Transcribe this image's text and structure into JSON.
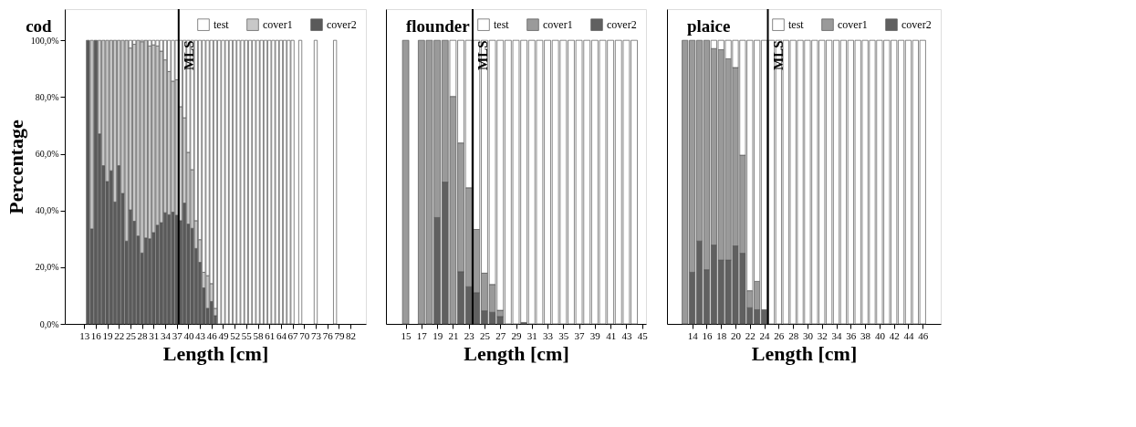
{
  "chart_data": [
    {
      "type": "bar",
      "stacked": true,
      "title": "cod",
      "xlabel": "Length [cm]",
      "ylabel": "Percentage",
      "x": [
        14,
        15,
        16,
        17,
        18,
        19,
        20,
        21,
        22,
        23,
        24,
        25,
        26,
        27,
        28,
        29,
        30,
        31,
        32,
        33,
        34,
        35,
        36,
        37,
        38,
        39,
        40,
        41,
        42,
        43,
        44,
        45,
        46,
        47,
        48,
        49,
        50,
        51,
        52,
        53,
        54,
        55,
        56,
        57,
        58,
        59,
        60,
        61,
        62,
        63,
        64,
        65,
        66,
        67,
        69,
        73,
        78
      ],
      "series": [
        {
          "name": "cover2",
          "color": "#5a5a5a",
          "values": [
            100,
            33.5,
            100,
            67,
            55.8,
            50.2,
            54,
            43,
            55.8,
            46,
            29.2,
            40.2,
            36.2,
            31,
            25,
            30.3,
            30,
            32.2,
            34.8,
            35.7,
            39.2,
            38.5,
            39.4,
            38.3,
            36.4,
            42.6,
            35.2,
            33.7,
            26.6,
            21.7,
            12.7,
            5.5,
            7.9,
            2.9,
            null,
            null,
            null,
            null,
            null,
            null,
            null,
            null,
            null,
            null,
            null,
            null,
            null,
            null,
            null,
            null,
            null,
            null,
            null,
            null,
            null,
            null,
            null
          ]
        },
        {
          "name": "cover1",
          "color": "#c8c8c8",
          "values": [
            null,
            66.5,
            null,
            33,
            44.2,
            49.8,
            46,
            57,
            44.2,
            54,
            70.8,
            57.1,
            62.4,
            69,
            74.5,
            69.7,
            68,
            66.2,
            63.2,
            60.5,
            53.9,
            50.5,
            46.2,
            47.8,
            40.2,
            30.1,
            25.3,
            20.7,
            9.8,
            8,
            5.5,
            11.5,
            6.3,
            2.6,
            null,
            null,
            null,
            null,
            null,
            null,
            null,
            null,
            null,
            null,
            null,
            null,
            null,
            null,
            null,
            null,
            null,
            null,
            null,
            null,
            null,
            null,
            null
          ]
        },
        {
          "name": "test",
          "color": "#ffffff",
          "values": [
            null,
            null,
            null,
            null,
            null,
            null,
            null,
            null,
            null,
            null,
            null,
            2.7,
            1.4,
            null,
            0.5,
            null,
            2,
            1.6,
            2,
            3.8,
            6.9,
            11,
            14.4,
            13.9,
            23.4,
            27.3,
            39.5,
            45.6,
            63.6,
            70.3,
            81.8,
            83,
            85.8,
            94.5,
            100,
            100,
            100,
            100,
            100,
            100,
            100,
            100,
            100,
            100,
            100,
            100,
            100,
            100,
            100,
            100,
            100,
            100,
            100,
            100,
            100,
            100,
            100
          ]
        }
      ],
      "xlim": [
        8,
        86
      ],
      "xticks": [
        13,
        16,
        19,
        22,
        25,
        28,
        31,
        34,
        37,
        40,
        43,
        46,
        49,
        52,
        55,
        58,
        61,
        64,
        67,
        70,
        73,
        76,
        79,
        82
      ],
      "ylim": [
        0,
        111
      ],
      "yticks": [
        {
          "value": 0,
          "label": "0,0%"
        },
        {
          "value": 20,
          "label": "20,0%"
        },
        {
          "value": 40,
          "label": "40,0%"
        },
        {
          "value": 60,
          "label": "60,0%"
        },
        {
          "value": 80,
          "label": "80,0%"
        },
        {
          "value": 100,
          "label": "100,0%"
        }
      ],
      "ref_lines": [
        {
          "axis": "x",
          "value": 37.5,
          "label": "MLS",
          "color": "#000000"
        }
      ],
      "legend": "top right",
      "grid": false
    },
    {
      "type": "bar",
      "stacked": true,
      "title": "flounder",
      "xlabel": "Length [cm]",
      "x": [
        15,
        17,
        18,
        19,
        20,
        21,
        22,
        23,
        24,
        25,
        26,
        27,
        28,
        29,
        30,
        31,
        32,
        33,
        34,
        35,
        36,
        37,
        38,
        39,
        40,
        41,
        42,
        43,
        44
      ],
      "series": [
        {
          "name": "cover2",
          "color": "#606060",
          "values": [
            null,
            null,
            null,
            37.5,
            50,
            null,
            18.4,
            13.1,
            11,
            4.6,
            4.1,
            2.6,
            null,
            null,
            0.5,
            null,
            null,
            null,
            null,
            null,
            null,
            null,
            null,
            null,
            null,
            null,
            null,
            null,
            null
          ]
        },
        {
          "name": "cover1",
          "color": "#9a9a9a",
          "values": [
            100,
            100,
            100,
            62.5,
            50,
            80.2,
            45.4,
            34.9,
            22.3,
            13.3,
            9.8,
            2.2,
            null,
            null,
            null,
            null,
            null,
            null,
            null,
            null,
            null,
            null,
            null,
            null,
            null,
            null,
            null,
            null,
            null
          ]
        },
        {
          "name": "test",
          "color": "#ffffff",
          "values": [
            null,
            null,
            null,
            null,
            null,
            19.8,
            36.2,
            52,
            66.7,
            82.1,
            86.1,
            95.2,
            100,
            100,
            99.5,
            100,
            100,
            100,
            100,
            100,
            100,
            100,
            100,
            100,
            100,
            100,
            100,
            100,
            100
          ]
        }
      ],
      "xlim": [
        12.5,
        45.5
      ],
      "xticks": [
        15,
        17,
        19,
        21,
        23,
        25,
        27,
        29,
        31,
        33,
        35,
        37,
        39,
        41,
        43,
        45
      ],
      "ylim": [
        0,
        111
      ],
      "tick_labels": "x",
      "ref_lines": [
        {
          "axis": "x",
          "value": 23.5,
          "label": "MLS",
          "color": "#000000"
        }
      ],
      "legend": "top right",
      "grid": false
    },
    {
      "type": "bar",
      "stacked": true,
      "title": "plaice",
      "xlabel": "Length [cm]",
      "x": [
        13,
        14,
        15,
        16,
        17,
        18,
        19,
        20,
        21,
        22,
        23,
        24,
        25,
        26,
        27,
        28,
        29,
        30,
        31,
        32,
        33,
        34,
        35,
        36,
        37,
        38,
        39,
        40,
        41,
        42,
        43,
        44,
        45,
        46
      ],
      "series": [
        {
          "name": "cover2",
          "color": "#606060",
          "values": [
            null,
            18.2,
            29.2,
            19.1,
            27.8,
            22.5,
            22.5,
            27.5,
            24.9,
            5.7,
            5,
            5,
            null,
            null,
            null,
            null,
            null,
            null,
            null,
            null,
            null,
            null,
            null,
            null,
            null,
            null,
            null,
            null,
            null,
            null,
            null,
            null,
            null,
            null
          ]
        },
        {
          "name": "cover1",
          "color": "#9a9a9a",
          "values": [
            100,
            81.8,
            70.8,
            80.9,
            69.3,
            74.2,
            71,
            62.9,
            34.6,
            6,
            10,
            null,
            null,
            null,
            null,
            null,
            null,
            null,
            null,
            null,
            null,
            null,
            null,
            null,
            null,
            null,
            null,
            null,
            null,
            null,
            null,
            null,
            null,
            null
          ]
        },
        {
          "name": "test",
          "color": "#ffffff",
          "values": [
            null,
            null,
            null,
            null,
            2.9,
            3.3,
            6.5,
            9.6,
            40.5,
            88.3,
            85,
            95,
            100,
            100,
            100,
            100,
            100,
            100,
            100,
            100,
            100,
            100,
            100,
            100,
            100,
            100,
            100,
            100,
            100,
            100,
            100,
            100,
            100,
            100
          ]
        }
      ],
      "xlim": [
        10.5,
        48.5
      ],
      "xticks": [
        14,
        16,
        18,
        20,
        22,
        24,
        26,
        28,
        30,
        32,
        34,
        36,
        38,
        40,
        42,
        44,
        46
      ],
      "ylim": [
        0,
        111
      ],
      "tick_labels": "x",
      "ref_lines": [
        {
          "axis": "x",
          "value": 24.5,
          "label": "MLS",
          "color": "#000000"
        }
      ],
      "legend": "top right",
      "grid": false
    }
  ]
}
